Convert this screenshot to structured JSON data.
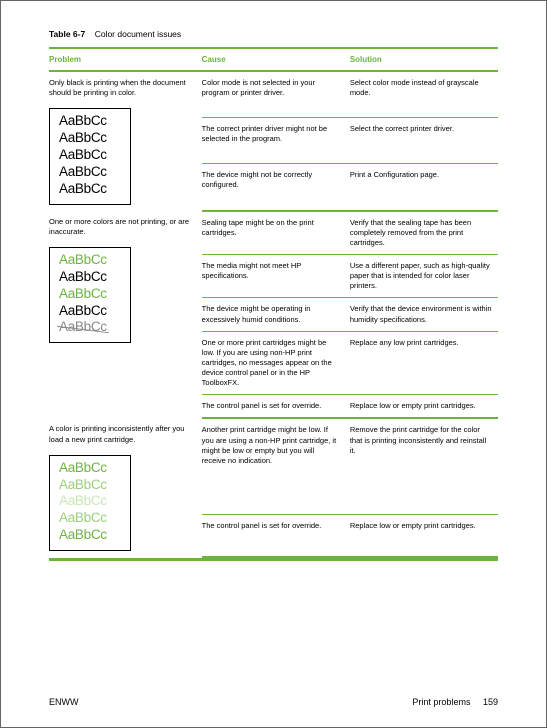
{
  "tableLabel": "Table 6-7",
  "tableCaption": "Color document issues",
  "headers": {
    "problem": "Problem",
    "cause": "Cause",
    "solution": "Solution"
  },
  "section1": {
    "problem": "Only black is printing when the document should be printing in color.",
    "rows": [
      {
        "cause": "Color mode is not selected in your program or printer driver.",
        "solution": "Select color mode instead of grayscale mode."
      },
      {
        "cause": "The correct printer driver might not be selected in the program.",
        "solution": "Select the correct printer driver."
      },
      {
        "cause": "The device might not be correctly configured.",
        "solution": "Print a Configuration page."
      }
    ],
    "sample": {
      "lines": [
        "AaBbCc",
        "AaBbCc",
        "AaBbCc",
        "AaBbCc",
        "AaBbCc"
      ],
      "colors": [
        "#000000",
        "#000000",
        "#000000",
        "#000000",
        "#000000"
      ]
    }
  },
  "section2": {
    "problem": "One or more colors are not printing, or are inaccurate.",
    "rows": [
      {
        "cause": "Sealing tape might be on the print cartridges.",
        "solution": "Verify that the sealing tape has been completely removed from the print cartridges."
      },
      {
        "cause": "The media might not meet HP specifications.",
        "solution": "Use a different paper, such as high-quality paper that is intended for color laser printers."
      },
      {
        "cause": "The device might be operating in excessively humid conditions.",
        "solution": "Verify that the device environment is within humidity specifications."
      },
      {
        "cause": "One or more print cartridges might be low. If you are using non-HP print cartridges, no messages appear on the device control panel or in the HP ToolboxFX.",
        "solution": "Replace any low print cartridges."
      },
      {
        "cause": "The control panel is set for override.",
        "solution": "Replace low or empty print cartridges."
      }
    ],
    "sample": {
      "lines": [
        "AaBbCc",
        "AaBbCc",
        "AaBbCc",
        "AaBbCc",
        "AaBbCc"
      ],
      "colors": [
        "#6db33f",
        "#000000",
        "#6db33f",
        "#000000",
        "#888888"
      ],
      "strikeIndex": 4
    }
  },
  "section3": {
    "problem": "A color is printing inconsistently after you load a new print cartridge.",
    "rows": [
      {
        "cause": "Another print cartridge might be low. If you are using a non-HP print cartridge, it might be low or empty but you will receive no indication.",
        "solution": "Remove the print cartridge for the color that is printing inconsistently and reinstall it."
      },
      {
        "cause": "The control panel is set for override.",
        "solution": "Replace low or empty print cartridges."
      }
    ],
    "sample": {
      "lines": [
        "AaBbCc",
        "AaBbCc",
        "AaBbCc",
        "AaBbCc",
        "AaBbCc"
      ],
      "colors": [
        "#6db33f",
        "#9ccf7a",
        "#c9e6b8",
        "#9ccf7a",
        "#6db33f"
      ]
    }
  },
  "footer": {
    "left": "ENWW",
    "rightLabel": "Print problems",
    "pageNum": "159"
  }
}
